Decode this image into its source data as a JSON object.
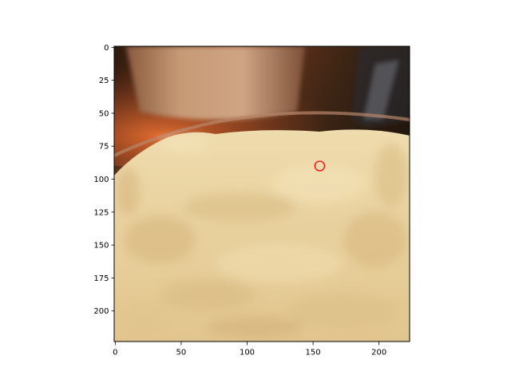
{
  "figure": {
    "x_ticks": [
      "0",
      "50",
      "100",
      "150",
      "200"
    ],
    "y_ticks": [
      "0",
      "25",
      "50",
      "75",
      "100",
      "125",
      "150",
      "175",
      "200"
    ],
    "image_description": "Close-up photo of a bowl of mashed potatoes",
    "marker": {
      "x": 155,
      "y": 90,
      "color": "#ff0000"
    },
    "colors": {
      "potato": "#e8cf9c",
      "potato_light": "#f3e2b8",
      "potato_shadow": "#d2b27a",
      "cup": "#c99b74",
      "table_warm": "#c35a2e",
      "table_dark": "#3a2516"
    }
  }
}
